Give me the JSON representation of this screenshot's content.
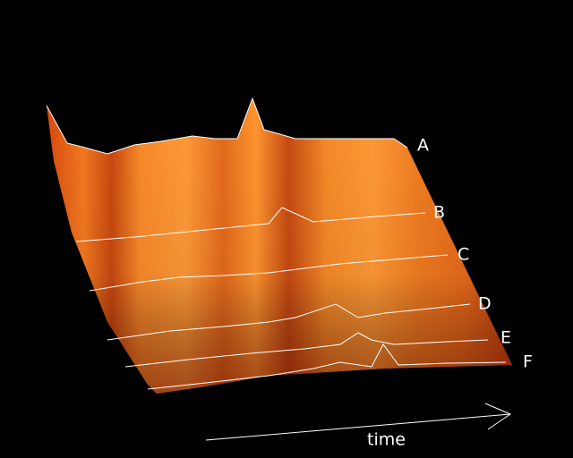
{
  "curve_labels": [
    "A",
    "B",
    "C",
    "D",
    "E",
    "F"
  ],
  "axis_label": "time"
}
